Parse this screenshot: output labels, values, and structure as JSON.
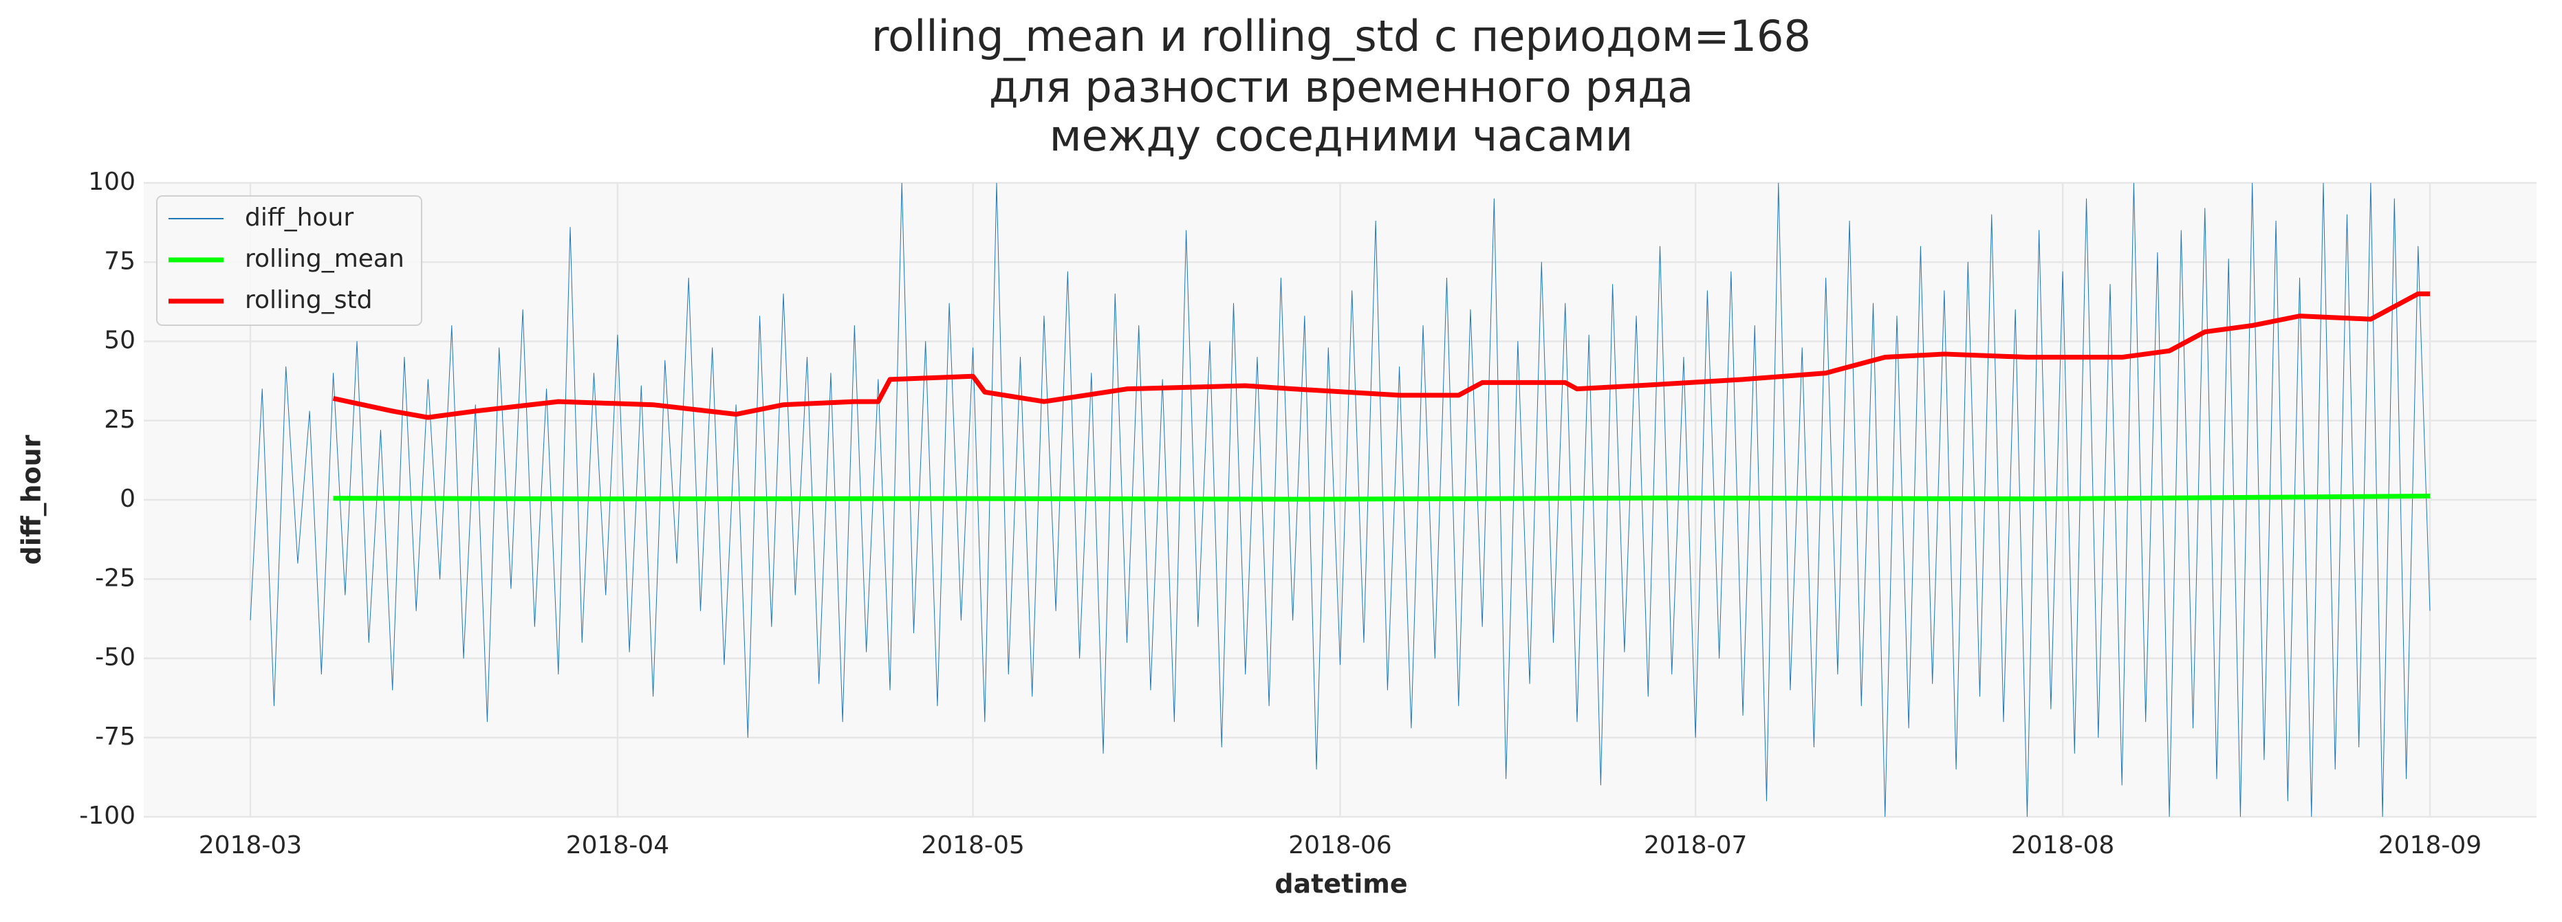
{
  "chart_data": {
    "type": "line",
    "title": [
      "rolling_mean и rolling_std с периодом=168",
      "для разности временного ряда",
      "между соседними часами"
    ],
    "xlabel": "datetime",
    "ylabel": "diff_hour",
    "x": [
      0,
      1,
      2,
      3,
      4,
      5,
      6,
      7,
      8,
      9,
      10,
      11,
      12,
      13,
      14,
      15,
      16,
      17,
      18,
      19,
      20,
      21,
      22,
      23,
      24,
      25,
      26,
      27,
      28,
      29,
      30,
      31,
      32,
      33,
      34,
      35,
      36,
      37,
      38,
      39,
      40,
      41,
      42,
      43,
      44,
      45,
      46,
      47,
      48,
      49,
      50,
      51,
      52,
      53,
      54,
      55,
      56,
      57,
      58,
      59,
      60,
      61,
      62,
      63,
      64,
      65,
      66,
      67,
      68,
      69,
      70,
      71,
      72,
      73,
      74,
      75,
      76,
      77,
      78,
      79,
      80,
      81,
      82,
      83,
      84,
      85,
      86,
      87,
      88,
      89,
      90,
      91,
      92,
      93,
      94,
      95,
      96,
      97,
      98,
      99,
      100,
      101,
      102,
      103,
      104,
      105,
      106,
      107,
      108,
      109,
      110,
      111,
      112,
      113,
      114,
      115,
      116,
      117,
      118,
      119,
      120,
      121,
      122,
      123,
      124,
      125,
      126,
      127,
      128,
      129,
      130,
      131,
      132,
      133,
      134,
      135,
      136,
      137,
      138,
      139,
      140,
      141,
      142,
      143,
      144,
      145,
      146,
      147,
      148,
      149,
      150,
      151,
      152,
      153,
      154,
      155,
      156,
      157,
      158,
      159,
      160,
      161,
      162,
      163,
      164,
      165,
      166,
      167,
      168,
      169,
      170,
      171,
      172,
      173,
      174,
      175,
      176,
      177,
      178,
      179,
      180,
      181,
      182,
      183,
      184
    ],
    "series": [
      {
        "name": "diff_hour",
        "color": "#1f77b4",
        "width": 1,
        "values": [
          -38,
          35,
          -65,
          42,
          -20,
          28,
          -55,
          40,
          -30,
          50,
          -45,
          22,
          -60,
          45,
          -35,
          38,
          -25,
          55,
          -50,
          30,
          -70,
          48,
          -28,
          60,
          -40,
          35,
          -55,
          86,
          -45,
          40,
          -30,
          52,
          -48,
          36,
          -62,
          44,
          -20,
          70,
          -35,
          48,
          -52,
          30,
          -75,
          58,
          -40,
          65,
          -30,
          45,
          -58,
          40,
          -70,
          55,
          -48,
          38,
          -60,
          100,
          -42,
          50,
          -65,
          62,
          -38,
          48,
          -70,
          100,
          -55,
          45,
          -62,
          58,
          -35,
          72,
          -50,
          40,
          -80,
          65,
          -45,
          55,
          -60,
          38,
          -70,
          85,
          -40,
          50,
          -78,
          62,
          -55,
          45,
          -65,
          70,
          -38,
          58,
          -85,
          48,
          -52,
          66,
          -45,
          88,
          -60,
          42,
          -72,
          55,
          -50,
          70,
          -65,
          60,
          -40,
          95,
          -88,
          50,
          -58,
          75,
          -45,
          62,
          -70,
          52,
          -90,
          68,
          -48,
          58,
          -62,
          80,
          -55,
          45,
          -75,
          66,
          -50,
          72,
          -68,
          55,
          -95,
          100,
          -60,
          48,
          -78,
          70,
          -55,
          88,
          -65,
          62,
          -100,
          58,
          -72,
          80,
          -58,
          66,
          -85,
          75,
          -62,
          90,
          -70,
          60,
          -100,
          85,
          -66,
          72,
          -80,
          95,
          -75,
          68,
          -90,
          100,
          -70,
          78,
          -100,
          85,
          -72,
          92,
          -88,
          76,
          -100,
          100,
          -82,
          88,
          -95,
          70,
          -100,
          100,
          -85,
          90,
          -78,
          100,
          -100,
          95,
          -88,
          80,
          -35
        ]
      },
      {
        "name": "rolling_mean",
        "color": "#00ff00",
        "width": 7,
        "x": [
          7,
          30,
          60,
          90,
          120,
          150,
          170,
          184
        ],
        "values": [
          0.5,
          0.3,
          0.4,
          0.2,
          0.6,
          0.3,
          0.8,
          1.2
        ]
      },
      {
        "name": "rolling_std",
        "color": "#ff0000",
        "width": 7,
        "x": [
          7,
          12,
          15,
          19,
          26,
          34,
          41,
          45,
          51,
          53,
          54,
          61,
          62,
          67,
          74,
          84,
          88,
          97,
          102,
          104,
          111,
          112,
          117,
          126,
          133,
          138,
          143,
          150,
          158,
          162,
          165,
          169,
          173,
          179,
          183,
          184
        ],
        "values": [
          32,
          28,
          26,
          28,
          31,
          30,
          27,
          30,
          31,
          31,
          38,
          39,
          34,
          31,
          35,
          36,
          35,
          33,
          33,
          37,
          37,
          35,
          36,
          38,
          40,
          45,
          46,
          45,
          45,
          47,
          53,
          55,
          58,
          57,
          65,
          65
        ]
      }
    ],
    "xlim": [
      -9,
      193
    ],
    "xticks": [
      {
        "value": 0,
        "label": "2018-03"
      },
      {
        "value": 31,
        "label": "2018-04"
      },
      {
        "value": 61,
        "label": "2018-05"
      },
      {
        "value": 92,
        "label": "2018-06"
      },
      {
        "value": 122,
        "label": "2018-07"
      },
      {
        "value": 153,
        "label": "2018-08"
      },
      {
        "value": 184,
        "label": "2018-09"
      }
    ],
    "ylim": [
      -100,
      100
    ],
    "yticks": [
      -100,
      -75,
      -50,
      -25,
      0,
      25,
      50,
      75,
      100
    ],
    "grid": true,
    "legend": "upper left"
  }
}
